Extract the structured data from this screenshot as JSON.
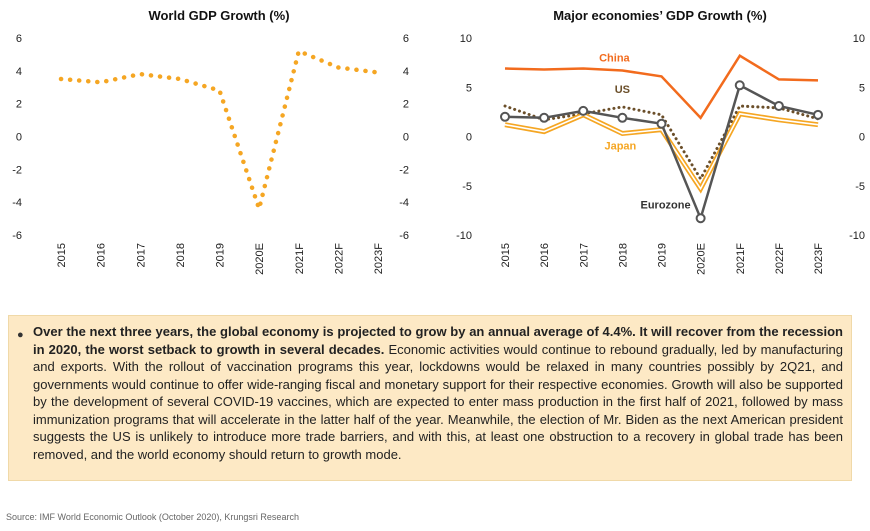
{
  "chart_data": [
    {
      "type": "line",
      "title": "World GDP Growth (%)",
      "xlabel": "",
      "ylabel": "",
      "categories": [
        "2015",
        "2016",
        "2017",
        "2018",
        "2019",
        "2020E",
        "2021F",
        "2022F",
        "2023F"
      ],
      "ylim": [
        -6,
        6
      ],
      "yticks": [
        "6",
        "4",
        "2",
        "0",
        "-2",
        "-4",
        "-6"
      ],
      "ytick_values": [
        6,
        4,
        2,
        0,
        -2,
        -4,
        -6
      ],
      "grid": false,
      "series": [
        {
          "values": [
            3.5,
            3.3,
            3.8,
            3.5,
            2.8,
            -4.4,
            5.2,
            4.2,
            3.9
          ],
          "color": "#f5a623",
          "style": "dotted"
        }
      ]
    },
    {
      "type": "line",
      "title": "Major economies’ GDP Growth (%)",
      "xlabel": "",
      "ylabel": "",
      "categories": [
        "2015",
        "2016",
        "2017",
        "2018",
        "2019",
        "2020E",
        "2021F",
        "2022F",
        "2023F"
      ],
      "ylim": [
        -10,
        10
      ],
      "yticks": [
        "10",
        "5",
        "0",
        "-5",
        "-10"
      ],
      "ytick_values": [
        10,
        5,
        0,
        -5,
        -10
      ],
      "grid": false,
      "series": [
        {
          "name": "China",
          "values": [
            6.9,
            6.8,
            6.9,
            6.7,
            6.1,
            1.9,
            8.2,
            5.8,
            5.7
          ],
          "color": "#f26b1d",
          "style": "solid"
        },
        {
          "name": "US",
          "values": [
            3.1,
            1.7,
            2.3,
            3.0,
            2.2,
            -4.3,
            3.1,
            2.9,
            1.8
          ],
          "color": "#6b4f2a",
          "style": "dotted"
        },
        {
          "name": "Japan",
          "values": [
            1.2,
            0.5,
            2.2,
            0.3,
            0.7,
            -5.3,
            2.3,
            1.7,
            1.2
          ],
          "color": "#f5a623",
          "style": "double"
        },
        {
          "name": "Eurozone",
          "values": [
            2.0,
            1.9,
            2.6,
            1.9,
            1.3,
            -8.3,
            5.2,
            3.1,
            2.2
          ],
          "color": "#555555",
          "style": "solid-markers"
        }
      ]
    }
  ],
  "note": {
    "bold": "Over the next three years, the global economy is projected to grow by an annual average of 4.4%. It will recover from the recession in 2020, the worst setback to growth in several decades.",
    "body": " Economic activities would continue to rebound gradually, led by manufacturing and exports. With the rollout of vaccination programs this year, lockdowns would be relaxed in many countries possibly by 2Q21, and governments would continue to offer wide-ranging fiscal and monetary support for their respective economies. Growth will also be supported by the development of several COVID-19 vaccines, which are expected to enter mass production in the first half of 2021, followed by mass immunization programs that will accelerate in the latter half of the year. Meanwhile, the election of Mr. Biden as the next American president suggests the US is unlikely to introduce more trade barriers, and with this, at least one obstruction to a recovery in global trade has been removed, and the world economy should return to growth mode."
  },
  "source": "Source: IMF World Economic Outlook (October 2020), Krungsri Research"
}
